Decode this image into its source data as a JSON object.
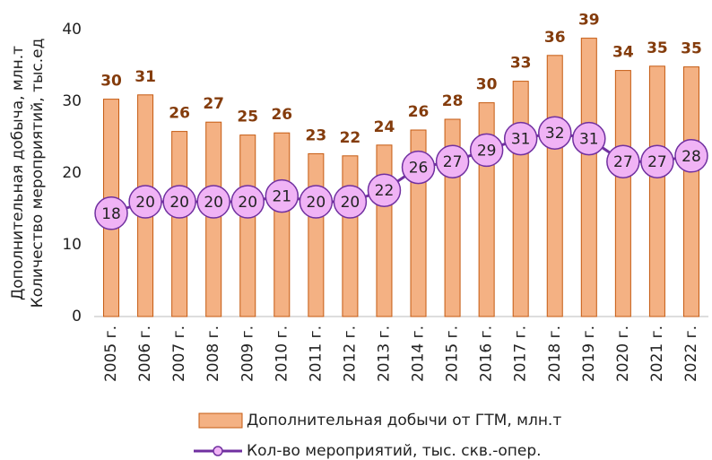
{
  "chart_data": {
    "type": "bar_line",
    "ylabel": [
      "Дополнительная добыча, млн.т",
      "Количество мероприятий, тыс.ед"
    ],
    "categories": [
      "2005 г.",
      "2006 г.",
      "2007 г.",
      "2008 г.",
      "2009 г.",
      "2010 г.",
      "2011 г.",
      "2012 г.",
      "2013 г.",
      "2014 г.",
      "2015 г.",
      "2016 г.",
      "2017 г.",
      "2018 г.",
      "2019 г.",
      "2020 г.",
      "2021 г.",
      "2022 г."
    ],
    "series": [
      {
        "name": "Дополнительная добычи от ГТМ, млн.т",
        "type": "bar",
        "color": "#f4b183",
        "edge": "#c55a11",
        "label_color": "#843c0c",
        "values": [
          30.3,
          30.9,
          25.8,
          27.1,
          25.3,
          25.6,
          22.7,
          22.4,
          23.9,
          26.0,
          27.5,
          29.8,
          32.8,
          36.4,
          38.8,
          34.3,
          34.9,
          34.8
        ],
        "value_labels": [
          "30",
          "31",
          "26",
          "27",
          "25",
          "26",
          "23",
          "22",
          "24",
          "26",
          "28",
          "30",
          "33",
          "36",
          "39",
          "34",
          "35",
          "35"
        ]
      },
      {
        "name": "Кол-во мероприятий, тыс. скв.-опер.",
        "type": "line",
        "axis": "y2",
        "color": "#7030a0",
        "marker_color": "#f0b3f5",
        "values": [
          18,
          20,
          20,
          20,
          20,
          21,
          20,
          20,
          22,
          26,
          27,
          29,
          31,
          32,
          31,
          27,
          27,
          28
        ]
      }
    ],
    "ylim": [
      0,
      40
    ],
    "yticks": [
      0,
      10,
      20,
      30,
      40
    ],
    "y2lim": [
      0,
      50
    ]
  }
}
